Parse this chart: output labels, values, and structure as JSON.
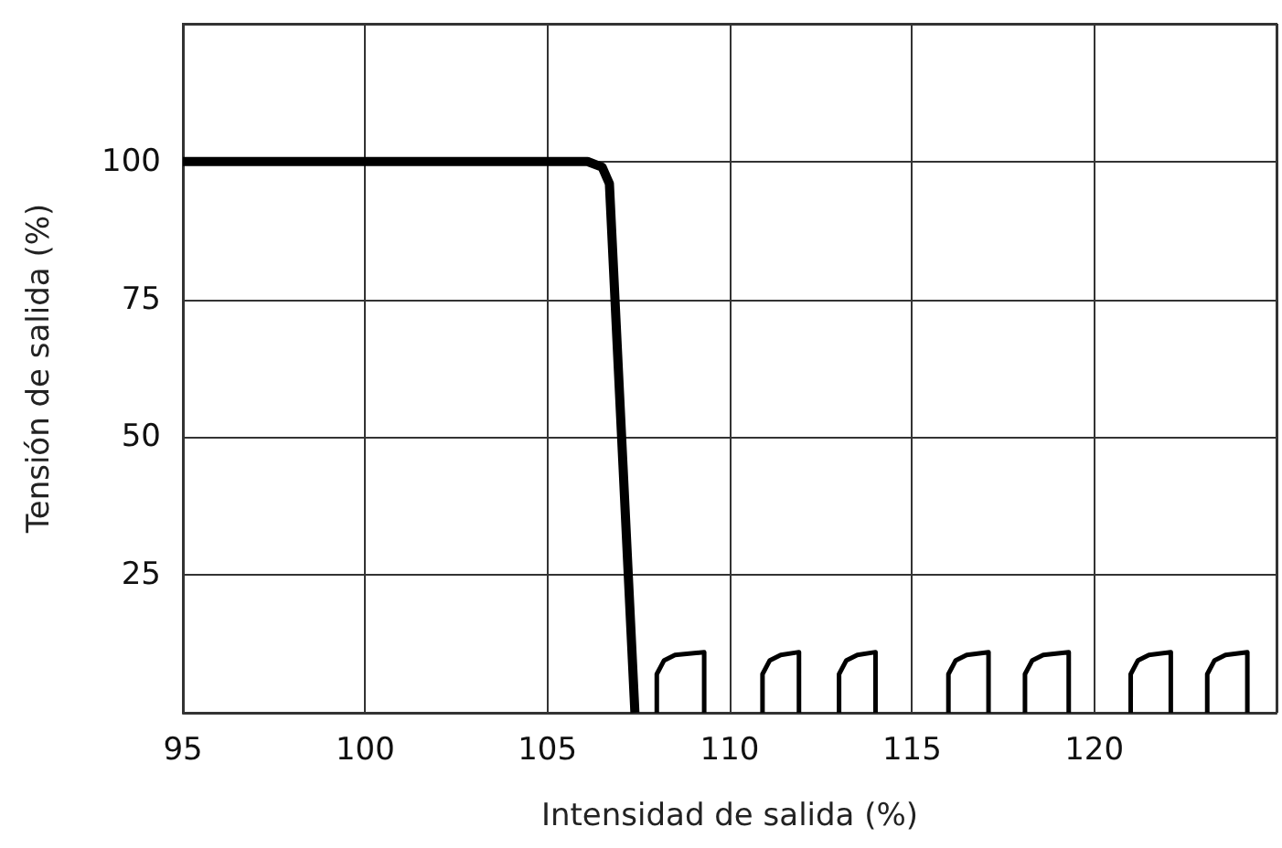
{
  "chart_data": {
    "type": "line",
    "xlabel": "Intensidad de salida (%)",
    "ylabel": "Tensión de salida (%)",
    "xlim": [
      95,
      125
    ],
    "xticks": [
      95,
      100,
      105,
      110,
      115,
      120
    ],
    "ylim": [
      0,
      125
    ],
    "yticks": [
      25,
      50,
      75,
      100
    ],
    "grid": true,
    "marker": "none",
    "series": [
      {
        "color": "#000000",
        "x": [
          95,
          106.1,
          106.5,
          106.7,
          107.4
        ],
        "values": [
          100,
          100,
          99,
          96,
          0
        ]
      },
      {
        "color": "#000000",
        "x": [
          108,
          108,
          108.2,
          108.5,
          109.3,
          109.3
        ],
        "values": [
          0,
          7,
          9.5,
          10.5,
          11,
          0
        ]
      },
      {
        "color": "#000000",
        "x": [
          110.9,
          110.9,
          111.1,
          111.4,
          111.9,
          111.9
        ],
        "values": [
          0,
          7,
          9.5,
          10.5,
          11,
          0
        ]
      },
      {
        "color": "#000000",
        "x": [
          113,
          113,
          113.2,
          113.5,
          114,
          114
        ],
        "values": [
          0,
          7,
          9.5,
          10.5,
          11,
          0
        ]
      },
      {
        "color": "#000000",
        "x": [
          116,
          116,
          116.2,
          116.5,
          117.1,
          117.1
        ],
        "values": [
          0,
          7,
          9.5,
          10.5,
          11,
          0
        ]
      },
      {
        "color": "#000000",
        "x": [
          118.1,
          118.1,
          118.3,
          118.6,
          119.3,
          119.3
        ],
        "values": [
          0,
          7,
          9.5,
          10.5,
          11,
          0
        ]
      },
      {
        "color": "#000000",
        "x": [
          121,
          121,
          121.2,
          121.5,
          122.1,
          122.1
        ],
        "values": [
          0,
          7,
          9.5,
          10.5,
          11,
          0
        ]
      },
      {
        "color": "#000000",
        "x": [
          123.1,
          123.1,
          123.3,
          123.6,
          124.2,
          124.2
        ],
        "values": [
          0,
          7,
          9.5,
          10.5,
          11,
          0
        ]
      }
    ]
  }
}
